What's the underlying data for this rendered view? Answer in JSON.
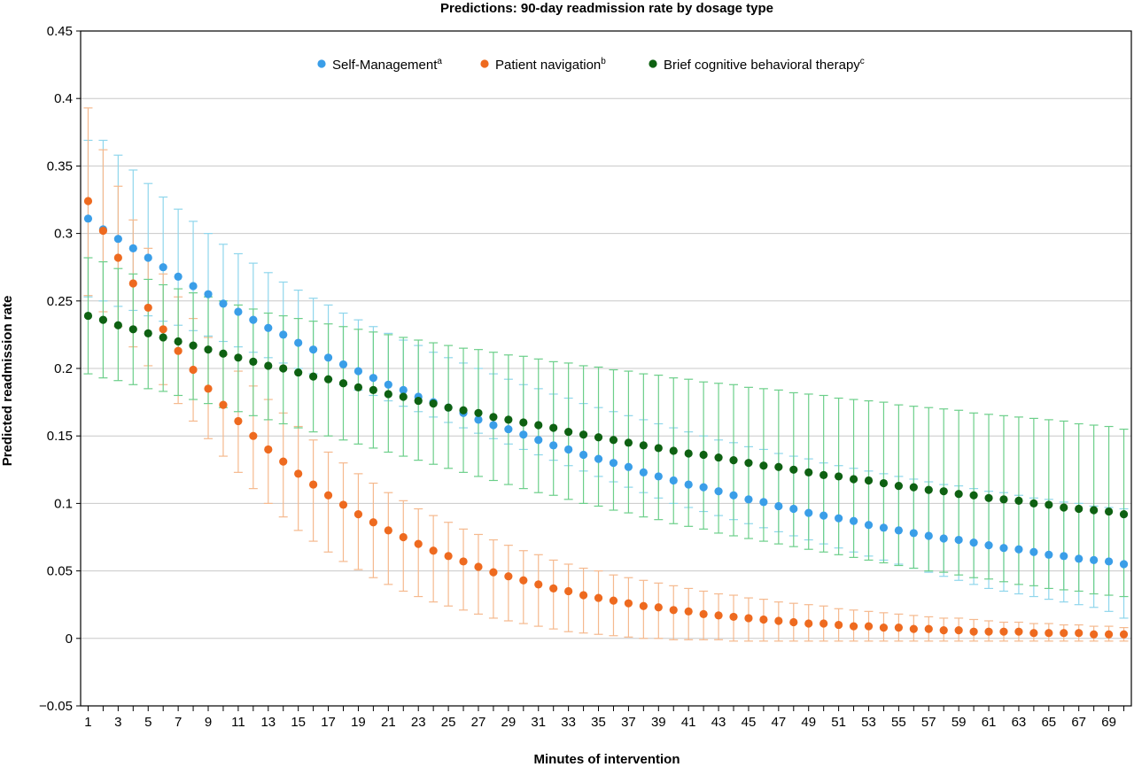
{
  "chart_data": {
    "type": "scatter",
    "title": "Predictions: 90-day readmission rate by dosage type",
    "xlabel": "Minutes of intervention",
    "ylabel": "Predicted readmission rate",
    "xlim": [
      0.5,
      70.5
    ],
    "ylim": [
      -0.05,
      0.45
    ],
    "y_ticks": [
      -0.05,
      0,
      0.05,
      0.1,
      0.15,
      0.2,
      0.25,
      0.3,
      0.35,
      0.4,
      0.45
    ],
    "y_tick_labels": [
      "−0.05",
      "0",
      "0.05",
      "0.1",
      "0.15",
      "0.2",
      "0.25",
      "0.3",
      "0.35",
      "0.4",
      "0.45"
    ],
    "x_ticks": [
      1,
      3,
      5,
      7,
      9,
      11,
      13,
      15,
      17,
      19,
      21,
      23,
      25,
      27,
      29,
      31,
      33,
      35,
      37,
      39,
      41,
      43,
      45,
      47,
      49,
      51,
      53,
      55,
      57,
      59,
      61,
      63,
      65,
      67,
      69
    ],
    "x_tick_labels": [
      "1",
      "3",
      "5",
      "7",
      "9",
      "11",
      "13",
      "15",
      "17",
      "19",
      "21",
      "23",
      "25",
      "27",
      "29",
      "31",
      "33",
      "35",
      "37",
      "39",
      "41",
      "43",
      "45",
      "47",
      "49",
      "51",
      "53",
      "55",
      "57",
      "59",
      "61",
      "63",
      "65",
      "67",
      "69"
    ],
    "grid": "horizontal",
    "legend_position": "top-center",
    "x": [
      1,
      2,
      3,
      4,
      5,
      6,
      7,
      8,
      9,
      10,
      11,
      12,
      13,
      14,
      15,
      16,
      17,
      18,
      19,
      20,
      21,
      22,
      23,
      24,
      25,
      26,
      27,
      28,
      29,
      30,
      31,
      32,
      33,
      34,
      35,
      36,
      37,
      38,
      39,
      40,
      41,
      42,
      43,
      44,
      45,
      46,
      47,
      48,
      49,
      50,
      51,
      52,
      53,
      54,
      55,
      56,
      57,
      58,
      59,
      60,
      61,
      62,
      63,
      64,
      65,
      66,
      67,
      68,
      69,
      70
    ],
    "series": [
      {
        "name": "Self-Management",
        "name_sup": "a",
        "color": "#3a9ee8",
        "error_color": "#8fd6ec",
        "values": [
          0.311,
          0.303,
          0.296,
          0.289,
          0.282,
          0.275,
          0.268,
          0.261,
          0.255,
          0.248,
          0.242,
          0.236,
          0.23,
          0.225,
          0.219,
          0.214,
          0.208,
          0.203,
          0.198,
          0.193,
          0.188,
          0.184,
          0.179,
          0.175,
          0.171,
          0.167,
          0.162,
          0.158,
          0.155,
          0.151,
          0.147,
          0.143,
          0.14,
          0.136,
          0.133,
          0.13,
          0.127,
          0.123,
          0.12,
          0.117,
          0.114,
          0.112,
          0.109,
          0.106,
          0.103,
          0.101,
          0.098,
          0.096,
          0.093,
          0.091,
          0.089,
          0.087,
          0.084,
          0.082,
          0.08,
          0.078,
          0.076,
          0.074,
          0.073,
          0.071,
          0.069,
          0.067,
          0.066,
          0.064,
          0.062,
          0.061,
          0.059,
          0.058,
          0.057,
          0.055
        ],
        "lower": [
          0.253,
          0.25,
          0.246,
          0.243,
          0.239,
          0.235,
          0.232,
          0.228,
          0.224,
          0.22,
          0.216,
          0.212,
          0.208,
          0.204,
          0.2,
          0.196,
          0.192,
          0.188,
          0.184,
          0.18,
          0.176,
          0.172,
          0.168,
          0.164,
          0.16,
          0.156,
          0.152,
          0.148,
          0.144,
          0.14,
          0.136,
          0.132,
          0.128,
          0.124,
          0.12,
          0.116,
          0.112,
          0.108,
          0.104,
          0.1,
          0.097,
          0.094,
          0.091,
          0.088,
          0.085,
          0.082,
          0.079,
          0.076,
          0.073,
          0.07,
          0.067,
          0.064,
          0.061,
          0.058,
          0.055,
          0.052,
          0.049,
          0.046,
          0.043,
          0.04,
          0.037,
          0.035,
          0.033,
          0.031,
          0.029,
          0.027,
          0.025,
          0.023,
          0.02,
          0.015
        ],
        "upper": [
          0.369,
          0.369,
          0.358,
          0.347,
          0.337,
          0.327,
          0.318,
          0.309,
          0.3,
          0.292,
          0.285,
          0.278,
          0.271,
          0.264,
          0.258,
          0.252,
          0.247,
          0.241,
          0.236,
          0.231,
          0.226,
          0.221,
          0.217,
          0.212,
          0.208,
          0.204,
          0.2,
          0.196,
          0.192,
          0.188,
          0.185,
          0.181,
          0.178,
          0.174,
          0.171,
          0.168,
          0.165,
          0.162,
          0.159,
          0.156,
          0.153,
          0.15,
          0.147,
          0.145,
          0.142,
          0.14,
          0.137,
          0.135,
          0.133,
          0.13,
          0.128,
          0.126,
          0.124,
          0.122,
          0.12,
          0.118,
          0.116,
          0.114,
          0.113,
          0.111,
          0.109,
          0.108,
          0.106,
          0.104,
          0.103,
          0.101,
          0.1,
          0.098,
          0.097,
          0.096
        ]
      },
      {
        "name": "Patient navigation",
        "name_sup": "b",
        "color": "#ee6a1f",
        "error_color": "#f5b98e",
        "values": [
          0.324,
          0.302,
          0.282,
          0.263,
          0.245,
          0.229,
          0.213,
          0.199,
          0.185,
          0.173,
          0.161,
          0.15,
          0.14,
          0.131,
          0.122,
          0.114,
          0.106,
          0.099,
          0.092,
          0.086,
          0.08,
          0.075,
          0.07,
          0.065,
          0.061,
          0.057,
          0.053,
          0.049,
          0.046,
          0.043,
          0.04,
          0.037,
          0.035,
          0.032,
          0.03,
          0.028,
          0.026,
          0.024,
          0.023,
          0.021,
          0.02,
          0.018,
          0.017,
          0.016,
          0.015,
          0.014,
          0.013,
          0.012,
          0.011,
          0.011,
          0.01,
          0.009,
          0.009,
          0.008,
          0.008,
          0.007,
          0.007,
          0.006,
          0.006,
          0.005,
          0.005,
          0.005,
          0.005,
          0.004,
          0.004,
          0.004,
          0.004,
          0.003,
          0.003,
          0.003
        ],
        "lower": [
          0.254,
          0.242,
          0.231,
          0.216,
          0.202,
          0.188,
          0.174,
          0.161,
          0.148,
          0.135,
          0.123,
          0.111,
          0.1,
          0.09,
          0.08,
          0.072,
          0.064,
          0.057,
          0.051,
          0.045,
          0.04,
          0.035,
          0.031,
          0.027,
          0.024,
          0.021,
          0.018,
          0.015,
          0.013,
          0.011,
          0.009,
          0.007,
          0.005,
          0.004,
          0.003,
          0.002,
          0.001,
          0.0,
          0.0,
          -0.001,
          -0.001,
          -0.001,
          -0.001,
          -0.002,
          -0.002,
          -0.002,
          -0.002,
          -0.002,
          -0.002,
          -0.002,
          -0.002,
          -0.002,
          -0.002,
          -0.002,
          -0.002,
          -0.002,
          -0.002,
          -0.002,
          -0.002,
          -0.002,
          -0.002,
          -0.002,
          -0.002,
          -0.002,
          -0.002,
          -0.002,
          -0.002,
          -0.002,
          -0.002,
          -0.002
        ],
        "upper": [
          0.393,
          0.362,
          0.335,
          0.31,
          0.289,
          0.27,
          0.253,
          0.237,
          0.223,
          0.21,
          0.198,
          0.187,
          0.177,
          0.167,
          0.157,
          0.147,
          0.138,
          0.13,
          0.122,
          0.115,
          0.108,
          0.102,
          0.096,
          0.091,
          0.086,
          0.081,
          0.077,
          0.073,
          0.069,
          0.065,
          0.062,
          0.058,
          0.055,
          0.052,
          0.05,
          0.047,
          0.045,
          0.043,
          0.041,
          0.039,
          0.037,
          0.035,
          0.033,
          0.032,
          0.03,
          0.029,
          0.027,
          0.026,
          0.025,
          0.024,
          0.022,
          0.021,
          0.02,
          0.019,
          0.018,
          0.017,
          0.016,
          0.015,
          0.015,
          0.014,
          0.013,
          0.012,
          0.012,
          0.011,
          0.011,
          0.01,
          0.01,
          0.009,
          0.009,
          0.008
        ]
      },
      {
        "name": "Brief cognitive behavioral therapy",
        "name_sup": "c",
        "color": "#0e6112",
        "error_color": "#6ccf8a",
        "values": [
          0.239,
          0.236,
          0.232,
          0.229,
          0.226,
          0.223,
          0.22,
          0.217,
          0.214,
          0.211,
          0.208,
          0.205,
          0.202,
          0.2,
          0.197,
          0.194,
          0.192,
          0.189,
          0.186,
          0.184,
          0.181,
          0.179,
          0.176,
          0.174,
          0.171,
          0.169,
          0.167,
          0.164,
          0.162,
          0.16,
          0.158,
          0.156,
          0.153,
          0.151,
          0.149,
          0.147,
          0.145,
          0.143,
          0.141,
          0.139,
          0.137,
          0.136,
          0.134,
          0.132,
          0.13,
          0.128,
          0.127,
          0.125,
          0.123,
          0.121,
          0.12,
          0.118,
          0.117,
          0.115,
          0.113,
          0.112,
          0.11,
          0.109,
          0.107,
          0.106,
          0.104,
          0.103,
          0.102,
          0.1,
          0.099,
          0.097,
          0.096,
          0.095,
          0.094,
          0.092
        ],
        "lower": [
          0.196,
          0.193,
          0.191,
          0.188,
          0.185,
          0.183,
          0.18,
          0.177,
          0.174,
          0.171,
          0.168,
          0.165,
          0.162,
          0.159,
          0.156,
          0.153,
          0.15,
          0.147,
          0.144,
          0.141,
          0.138,
          0.135,
          0.132,
          0.129,
          0.126,
          0.123,
          0.12,
          0.117,
          0.114,
          0.111,
          0.108,
          0.106,
          0.103,
          0.1,
          0.098,
          0.095,
          0.093,
          0.09,
          0.088,
          0.085,
          0.083,
          0.081,
          0.078,
          0.076,
          0.074,
          0.072,
          0.07,
          0.068,
          0.066,
          0.064,
          0.062,
          0.06,
          0.058,
          0.056,
          0.054,
          0.052,
          0.05,
          0.049,
          0.047,
          0.045,
          0.044,
          0.042,
          0.04,
          0.039,
          0.037,
          0.036,
          0.035,
          0.033,
          0.032,
          0.031
        ],
        "upper": [
          0.282,
          0.279,
          0.274,
          0.27,
          0.266,
          0.262,
          0.259,
          0.256,
          0.253,
          0.25,
          0.247,
          0.244,
          0.241,
          0.239,
          0.237,
          0.235,
          0.233,
          0.231,
          0.229,
          0.227,
          0.225,
          0.223,
          0.221,
          0.219,
          0.217,
          0.215,
          0.214,
          0.212,
          0.21,
          0.209,
          0.207,
          0.205,
          0.204,
          0.202,
          0.201,
          0.199,
          0.198,
          0.196,
          0.195,
          0.193,
          0.192,
          0.19,
          0.189,
          0.188,
          0.186,
          0.185,
          0.184,
          0.182,
          0.181,
          0.18,
          0.178,
          0.177,
          0.176,
          0.175,
          0.173,
          0.172,
          0.171,
          0.17,
          0.169,
          0.167,
          0.166,
          0.165,
          0.164,
          0.163,
          0.162,
          0.161,
          0.159,
          0.158,
          0.157,
          0.155
        ]
      }
    ]
  }
}
